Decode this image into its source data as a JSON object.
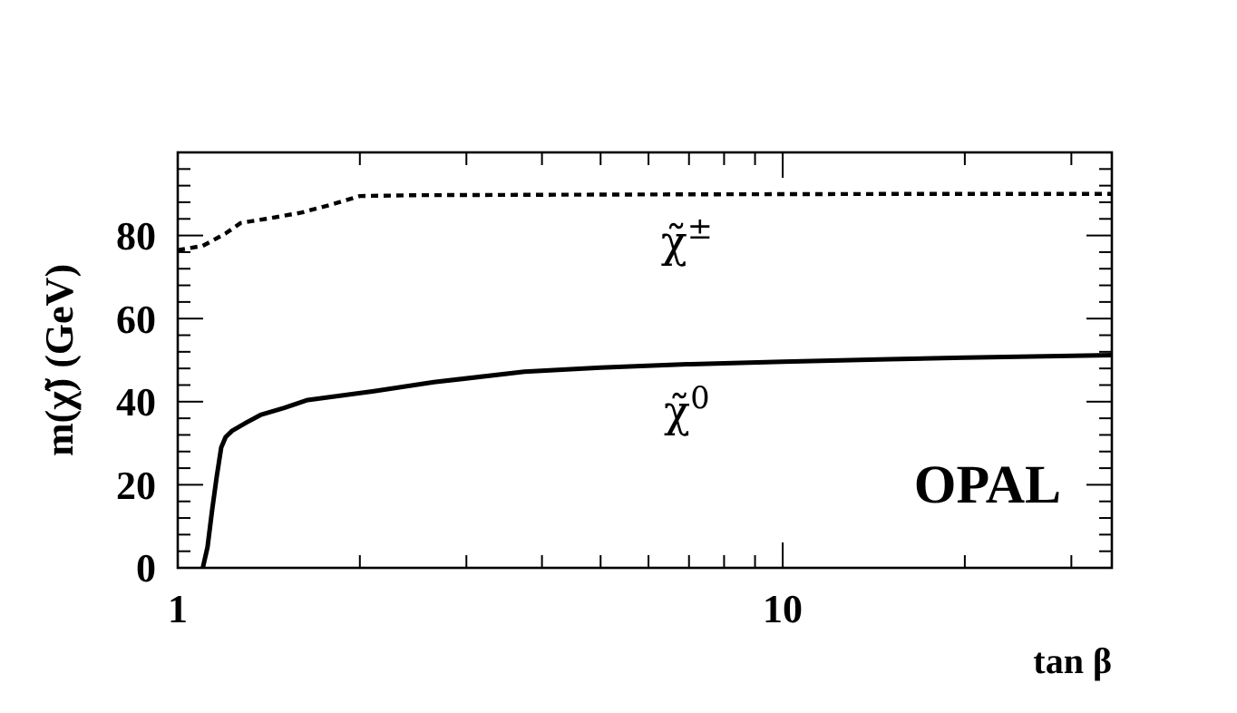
{
  "chart_data": {
    "type": "line",
    "xlabel": "tan β",
    "ylabel": "m(χ̃) (GeV)",
    "log": "x",
    "xlim": [
      1,
      35
    ],
    "ylim": [
      0,
      100
    ],
    "xticks": [
      1,
      {
        "value": 2,
        "label": null
      },
      {
        "value": 3,
        "label": null
      },
      {
        "value": 4,
        "label": null
      },
      {
        "value": 5,
        "label": null
      },
      {
        "value": 6,
        "label": null
      },
      {
        "value": 7,
        "label": null
      },
      {
        "value": 8,
        "label": null
      },
      {
        "value": 9,
        "label": null
      },
      10,
      {
        "value": 20,
        "label": null
      },
      {
        "value": 30,
        "label": null
      }
    ],
    "yticks": [
      0,
      {
        "value": 4,
        "label": null
      },
      {
        "value": 8,
        "label": null
      },
      {
        "value": 12,
        "label": null
      },
      {
        "value": 16,
        "label": null
      },
      20,
      {
        "value": 24,
        "label": null
      },
      {
        "value": 28,
        "label": null
      },
      {
        "value": 32,
        "label": null
      },
      {
        "value": 36,
        "label": null
      },
      40,
      {
        "value": 44,
        "label": null
      },
      {
        "value": 48,
        "label": null
      },
      {
        "value": 52,
        "label": null
      },
      {
        "value": 56,
        "label": null
      },
      60,
      {
        "value": 64,
        "label": null
      },
      {
        "value": 68,
        "label": null
      },
      {
        "value": 72,
        "label": null
      },
      {
        "value": 76,
        "label": null
      },
      80,
      {
        "value": 84,
        "label": null
      },
      {
        "value": 88,
        "label": null
      },
      {
        "value": 92,
        "label": null
      },
      {
        "value": 96,
        "label": null
      },
      {
        "value": 100,
        "label": null
      }
    ],
    "grid": false,
    "series": [
      {
        "color": "#000000",
        "line_style": "dashed",
        "x": [
          1,
          1.1,
          1.2,
          1.27,
          1.4,
          1.6,
          1.8,
          2,
          2.5,
          4,
          7,
          15,
          35
        ],
        "values": [
          76.5,
          77.5,
          80.5,
          83,
          84,
          85.5,
          87.5,
          89.5,
          89.7,
          89.8,
          89.9,
          90,
          90
        ]
      },
      {
        "color": "#000000",
        "line_style": "solid",
        "x": [
          1.1,
          1.12,
          1.14,
          1.16,
          1.18,
          1.2,
          1.23,
          1.3,
          1.37,
          1.5,
          1.64,
          2.11,
          2.65,
          3.74,
          5,
          6.95,
          10,
          15,
          20,
          35
        ],
        "values": [
          0,
          5,
          14,
          22,
          29,
          31.5,
          33,
          35,
          36.8,
          38.5,
          40.4,
          42.5,
          44.7,
          47.2,
          48.2,
          49,
          49.6,
          50.2,
          50.6,
          51.2
        ]
      }
    ],
    "annotations": [
      "χ̃$^{±}$",
      "χ̃$^{0}$",
      "OPAL"
    ]
  }
}
